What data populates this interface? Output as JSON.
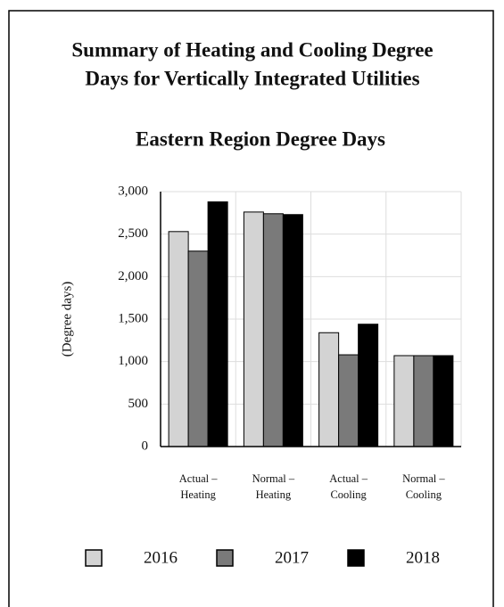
{
  "chart_data": {
    "type": "bar",
    "title": [
      "Summary of Heating and Cooling Degree",
      "Days for Vertically Integrated Utilities"
    ],
    "subtitle": "Eastern Region Degree Days",
    "y_label": "(Degree days)",
    "categories": [
      "Actual – Heating",
      "Normal – Heating",
      "Actual – Cooling",
      "Normal – Cooling"
    ],
    "series": [
      {
        "name": "2016",
        "color": "#d3d3d3",
        "values": [
          2530,
          2760,
          1340,
          1070
        ]
      },
      {
        "name": "2017",
        "color": "#7a7a7a",
        "values": [
          2300,
          2740,
          1080,
          1070
        ]
      },
      {
        "name": "2018",
        "color": "#000000",
        "values": [
          2880,
          2730,
          1440,
          1070
        ]
      }
    ],
    "ylim": [
      0,
      3000
    ],
    "yticks": [
      0,
      500,
      {
        "value": 1000,
        "label": "1,000"
      },
      {
        "value": 1500,
        "label": "1,500"
      },
      {
        "value": 2000,
        "label": "2,000"
      },
      {
        "value": 2500,
        "label": "2,500"
      },
      {
        "value": 3000,
        "label": "3,000"
      }
    ],
    "grid": true
  }
}
